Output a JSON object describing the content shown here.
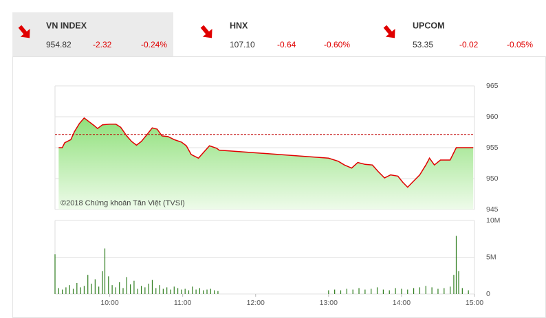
{
  "header": {
    "indices": [
      {
        "name": "VN INDEX",
        "value": "954.82",
        "change": "-2.32",
        "percent": "-0.24%"
      },
      {
        "name": "HNX",
        "value": "107.10",
        "change": "-0.64",
        "percent": "-0.60%"
      },
      {
        "name": "UPCOM",
        "value": "53.35",
        "change": "-0.02",
        "percent": "-0.05%"
      }
    ]
  },
  "chart_data": [
    {
      "type": "line",
      "color": "#e00000",
      "reference": 957.14,
      "reference_color": "#c00000",
      "annotation": "©2018 Chứng khoán Tân Việt (TVSI)",
      "xlim": [
        "09:15",
        "15:00"
      ],
      "x": [
        "09:18",
        "09:21",
        "09:23",
        "09:28",
        "09:31",
        "09:35",
        "09:39",
        "09:43",
        "09:47",
        "09:50",
        "09:54",
        "10:00",
        "10:05",
        "10:09",
        "10:14",
        "10:18",
        "10:22",
        "10:26",
        "10:31",
        "10:35",
        "10:39",
        "10:43",
        "10:48",
        "10:53",
        "10:59",
        "11:03",
        "11:07",
        "11:13",
        "11:17",
        "11:22",
        "11:28",
        "11:30",
        "13:00",
        "13:08",
        "13:13",
        "13:19",
        "13:24",
        "13:30",
        "13:36",
        "13:41",
        "13:46",
        "13:51",
        "13:57",
        "14:01",
        "14:05",
        "14:09",
        "14:15",
        "14:20",
        "14:23",
        "14:27",
        "14:32",
        "14:40",
        "14:45",
        "14:59"
      ],
      "values": [
        955.0,
        955.0,
        955.8,
        956.3,
        957.6,
        958.9,
        959.8,
        959.2,
        958.6,
        958.1,
        958.7,
        958.8,
        958.8,
        958.3,
        956.9,
        956.0,
        955.4,
        956.0,
        957.2,
        958.2,
        958.0,
        956.9,
        956.8,
        956.3,
        955.9,
        955.3,
        953.9,
        953.3,
        954.2,
        955.3,
        954.9,
        954.6,
        953.3,
        952.8,
        952.2,
        951.7,
        952.6,
        952.3,
        952.2,
        951.1,
        950.1,
        950.6,
        950.4,
        949.4,
        948.6,
        949.4,
        950.6,
        952.2,
        953.3,
        952.2,
        953.0,
        953.0,
        955.0,
        955.0
      ],
      "ylim": [
        945,
        965
      ],
      "yticks": [
        945,
        950,
        955,
        960,
        965
      ],
      "grid": true
    },
    {
      "type": "bar",
      "color": "#2e7d1e",
      "xlim": [
        "09:15",
        "15:00"
      ],
      "xticks": [
        "10:00",
        "11:00",
        "12:00",
        "13:00",
        "14:00",
        "15:00"
      ],
      "x": [
        "09:15",
        "09:18",
        "09:21",
        "09:24",
        "09:27",
        "09:30",
        "09:33",
        "09:36",
        "09:39",
        "09:42",
        "09:45",
        "09:48",
        "09:51",
        "09:54",
        "09:56",
        "09:59",
        "10:02",
        "10:05",
        "10:08",
        "10:11",
        "10:14",
        "10:17",
        "10:20",
        "10:23",
        "10:26",
        "10:29",
        "10:32",
        "10:35",
        "10:38",
        "10:41",
        "10:44",
        "10:47",
        "10:50",
        "10:53",
        "10:56",
        "10:59",
        "11:02",
        "11:05",
        "11:08",
        "11:11",
        "11:14",
        "11:17",
        "11:20",
        "11:23",
        "11:26",
        "11:29",
        "13:00",
        "13:05",
        "13:10",
        "13:15",
        "13:20",
        "13:25",
        "13:30",
        "13:35",
        "13:40",
        "13:45",
        "13:50",
        "13:55",
        "14:00",
        "14:05",
        "14:10",
        "14:15",
        "14:20",
        "14:25",
        "14:30",
        "14:35",
        "14:40",
        "14:43",
        "14:45",
        "14:47",
        "14:50",
        "14:55"
      ],
      "values": [
        5400000,
        800000,
        600000,
        900000,
        1200000,
        700000,
        1500000,
        900000,
        1100000,
        2600000,
        1400000,
        2000000,
        1000000,
        3100000,
        6200000,
        2400000,
        1200000,
        900000,
        1600000,
        800000,
        2300000,
        1300000,
        1800000,
        700000,
        1100000,
        900000,
        1400000,
        1900000,
        800000,
        1200000,
        700000,
        900000,
        600000,
        1000000,
        800000,
        600000,
        700000,
        500000,
        1000000,
        600000,
        800000,
        500000,
        600000,
        700000,
        500000,
        400000,
        500000,
        600000,
        500000,
        700000,
        600000,
        800000,
        600000,
        700000,
        900000,
        600000,
        500000,
        800000,
        700000,
        600000,
        800000,
        900000,
        1100000,
        900000,
        700000,
        800000,
        1000000,
        2600000,
        7900000,
        3100000,
        800000,
        500000
      ],
      "ylim": [
        0,
        10000000
      ],
      "yticks": [
        {
          "value": 0,
          "label": "0"
        },
        {
          "value": 5000000,
          "label": "5M"
        },
        {
          "value": 10000000,
          "label": "10M"
        }
      ],
      "grid": true
    }
  ]
}
